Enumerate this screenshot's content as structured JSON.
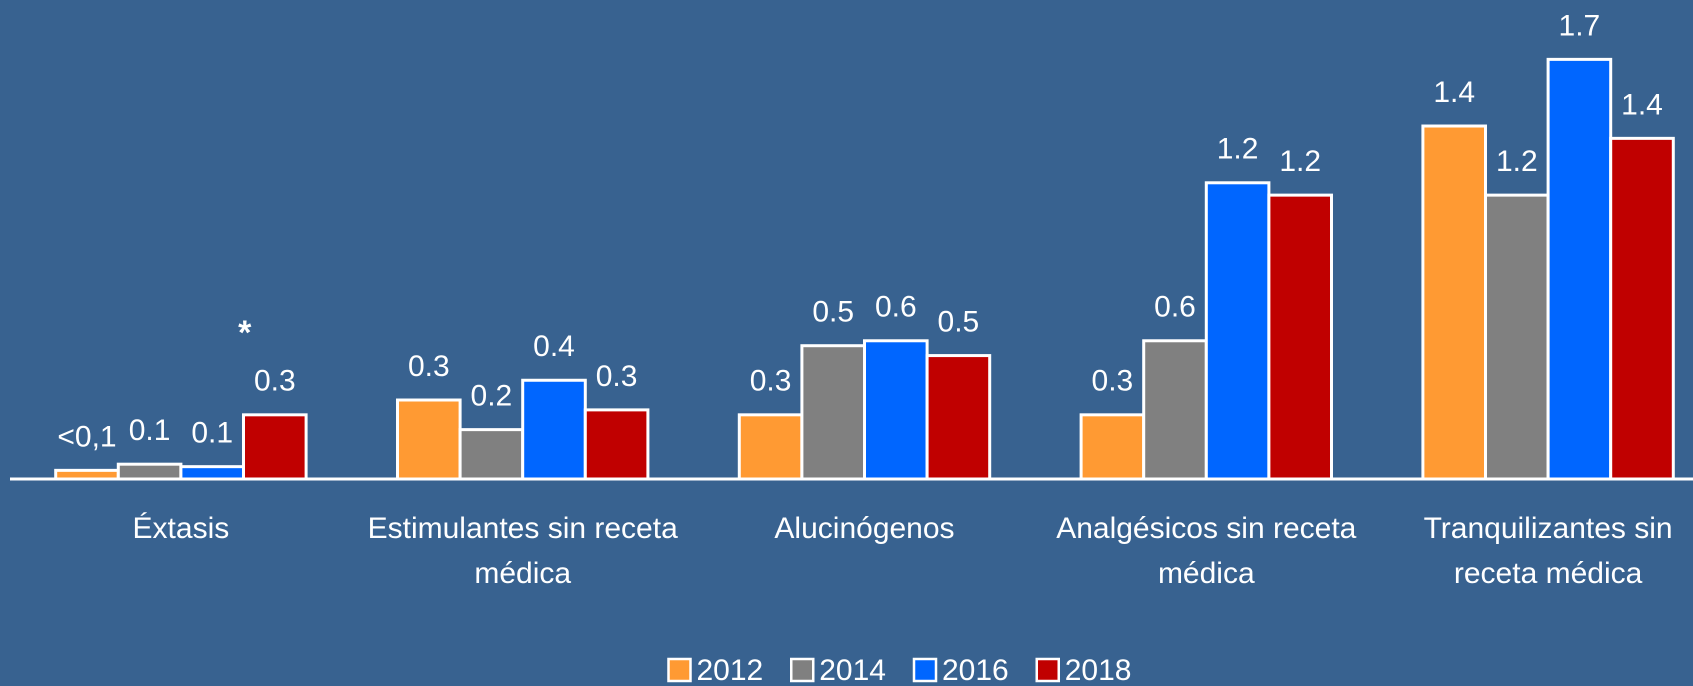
{
  "chart_data": {
    "type": "bar",
    "categories": [
      "Éxtasis",
      "Estimulantes sin receta médica",
      "Alucinógenos",
      "Analgésicos sin receta médica",
      "Tranquilizantes sin receta médica"
    ],
    "series": [
      {
        "name": "2012",
        "color": "#ff9a33",
        "values": [
          0.035,
          0.32,
          0.26,
          0.26,
          1.43
        ],
        "value_labels": [
          "<0,1",
          "0.3",
          "0.3",
          "0.3",
          "1.4"
        ]
      },
      {
        "name": "2014",
        "color": "#808080",
        "values": [
          0.06,
          0.2,
          0.54,
          0.56,
          1.15
        ],
        "value_labels": [
          "0.1",
          "0.2",
          "0.5",
          "0.6",
          "1.2"
        ]
      },
      {
        "name": "2016",
        "color": "#0066ff",
        "values": [
          0.05,
          0.4,
          0.56,
          1.2,
          1.7
        ],
        "value_labels": [
          "0.1",
          "0.4",
          "0.6",
          "1.2",
          "1.7"
        ]
      },
      {
        "name": "2018",
        "color": "#c00000",
        "values": [
          0.26,
          0.28,
          0.5,
          1.15,
          1.38
        ],
        "value_labels": [
          "0.3",
          "0.3",
          "0.5",
          "1.2",
          "1.4"
        ]
      }
    ],
    "annotation": "*",
    "ylim": [
      0,
      1.9
    ],
    "grid": false,
    "legend": "bottom"
  }
}
